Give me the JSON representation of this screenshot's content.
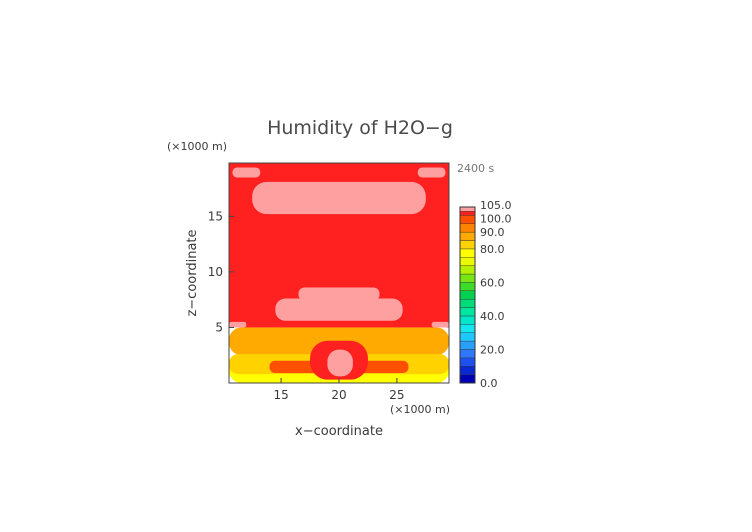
{
  "chart_data": {
    "type": "heatmap",
    "title": "Humidity of H2O−g",
    "xlabel": "x−coordinate",
    "ylabel": "z−coordinate",
    "x_unit": "(×1000 m)",
    "y_unit": "(×1000 m)",
    "time_label": "2400 s",
    "xlim": [
      10.5,
      29.5
    ],
    "ylim": [
      0,
      19.8
    ],
    "x_ticks": [
      15,
      20,
      25
    ],
    "y_ticks": [
      5,
      10,
      15
    ],
    "colorbar": {
      "ticks": [
        0.0,
        20.0,
        40.0,
        60.0,
        80.0,
        90.0,
        100.0,
        105.0
      ],
      "tick_labels": [
        "0.0",
        "20.0",
        "40.0",
        "60.0",
        "80.0",
        "90.0",
        "100.0",
        "105.0"
      ],
      "levels": [
        {
          "from": 0,
          "to": 5,
          "color": "#0000b4"
        },
        {
          "from": 5,
          "to": 10,
          "color": "#0a28d2"
        },
        {
          "from": 10,
          "to": 15,
          "color": "#1e50f0"
        },
        {
          "from": 15,
          "to": 20,
          "color": "#2d78ff"
        },
        {
          "from": 20,
          "to": 25,
          "color": "#28a0ff"
        },
        {
          "from": 25,
          "to": 30,
          "color": "#1ec8ff"
        },
        {
          "from": 30,
          "to": 35,
          "color": "#14e6f0"
        },
        {
          "from": 35,
          "to": 40,
          "color": "#00e6c8"
        },
        {
          "from": 40,
          "to": 45,
          "color": "#00e6a0"
        },
        {
          "from": 45,
          "to": 50,
          "color": "#00dc78"
        },
        {
          "from": 50,
          "to": 55,
          "color": "#00d250"
        },
        {
          "from": 55,
          "to": 60,
          "color": "#3cdc28"
        },
        {
          "from": 60,
          "to": 65,
          "color": "#78e614"
        },
        {
          "from": 65,
          "to": 70,
          "color": "#b4f000"
        },
        {
          "from": 70,
          "to": 75,
          "color": "#ecfa00"
        },
        {
          "from": 75,
          "to": 80,
          "color": "#ffff00"
        },
        {
          "from": 80,
          "to": 85,
          "color": "#ffd200"
        },
        {
          "from": 85,
          "to": 90,
          "color": "#ffaa00"
        },
        {
          "from": 90,
          "to": 95,
          "color": "#ff8200"
        },
        {
          "from": 95,
          "to": 100,
          "color": "#ff5000"
        },
        {
          "from": 100,
          "to": 102.5,
          "color": "#ff2020"
        },
        {
          "from": 102.5,
          "to": 105,
          "color": "#ffa0a0"
        }
      ]
    },
    "regions": [
      {
        "value": 101,
        "x": [
          10.5,
          29.5
        ],
        "z": [
          5.0,
          19.8
        ],
        "note": "background"
      },
      {
        "value": 104,
        "x": [
          10.8,
          13.2
        ],
        "z": [
          18.5,
          19.4
        ]
      },
      {
        "value": 104,
        "x": [
          26.8,
          29.2
        ],
        "z": [
          18.5,
          19.4
        ]
      },
      {
        "value": 104,
        "x": [
          12.5,
          27.5
        ],
        "z": [
          15.2,
          18.1
        ],
        "note": "upper band"
      },
      {
        "value": 104,
        "x": [
          14.5,
          25.5
        ],
        "z": [
          5.6,
          7.6
        ],
        "note": "mid cloud"
      },
      {
        "value": 104,
        "x": [
          16.5,
          23.5
        ],
        "z": [
          7.4,
          8.6
        ]
      },
      {
        "value": 104,
        "x": [
          10.5,
          12.0
        ],
        "z": [
          5.0,
          5.5
        ]
      },
      {
        "value": 104,
        "x": [
          28.0,
          29.5
        ],
        "z": [
          5.0,
          5.5
        ]
      },
      {
        "value": 87,
        "x": [
          10.5,
          29.5
        ],
        "z": [
          2.5,
          5.0
        ]
      },
      {
        "value": 77,
        "x": [
          10.5,
          29.5
        ],
        "z": [
          0,
          2.5
        ]
      },
      {
        "value": 83,
        "x": [
          10.5,
          29.5
        ],
        "z": [
          0.8,
          2.6
        ]
      },
      {
        "value": 97,
        "x": [
          14.0,
          26.0
        ],
        "z": [
          0.9,
          2.0
        ]
      },
      {
        "value": 101,
        "x": [
          17.5,
          22.5
        ],
        "z": [
          0.3,
          3.8
        ],
        "note": "core"
      },
      {
        "value": 104,
        "x": [
          19.0,
          21.2
        ],
        "z": [
          0.6,
          3.0
        ]
      }
    ]
  }
}
